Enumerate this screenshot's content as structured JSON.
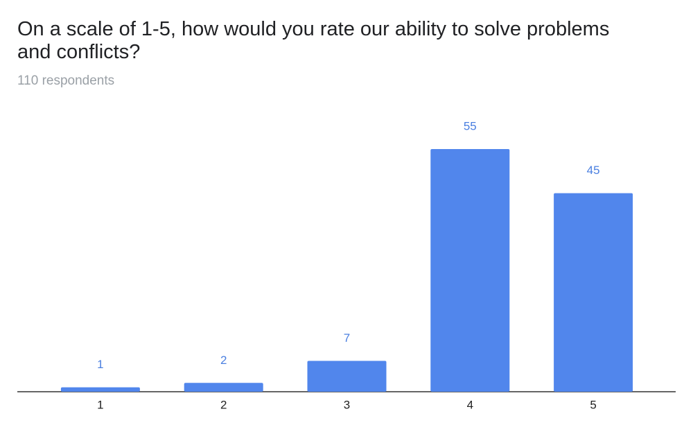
{
  "chart_data": {
    "type": "bar",
    "title": "On a scale of 1-5, how would you rate our ability to solve problems and conflicts?",
    "subtitle": "110 respondents",
    "categories": [
      "1",
      "2",
      "3",
      "4",
      "5"
    ],
    "values": [
      1,
      2,
      7,
      55,
      45
    ],
    "color": "#5186ec",
    "label_color": "#4a7fe0"
  }
}
